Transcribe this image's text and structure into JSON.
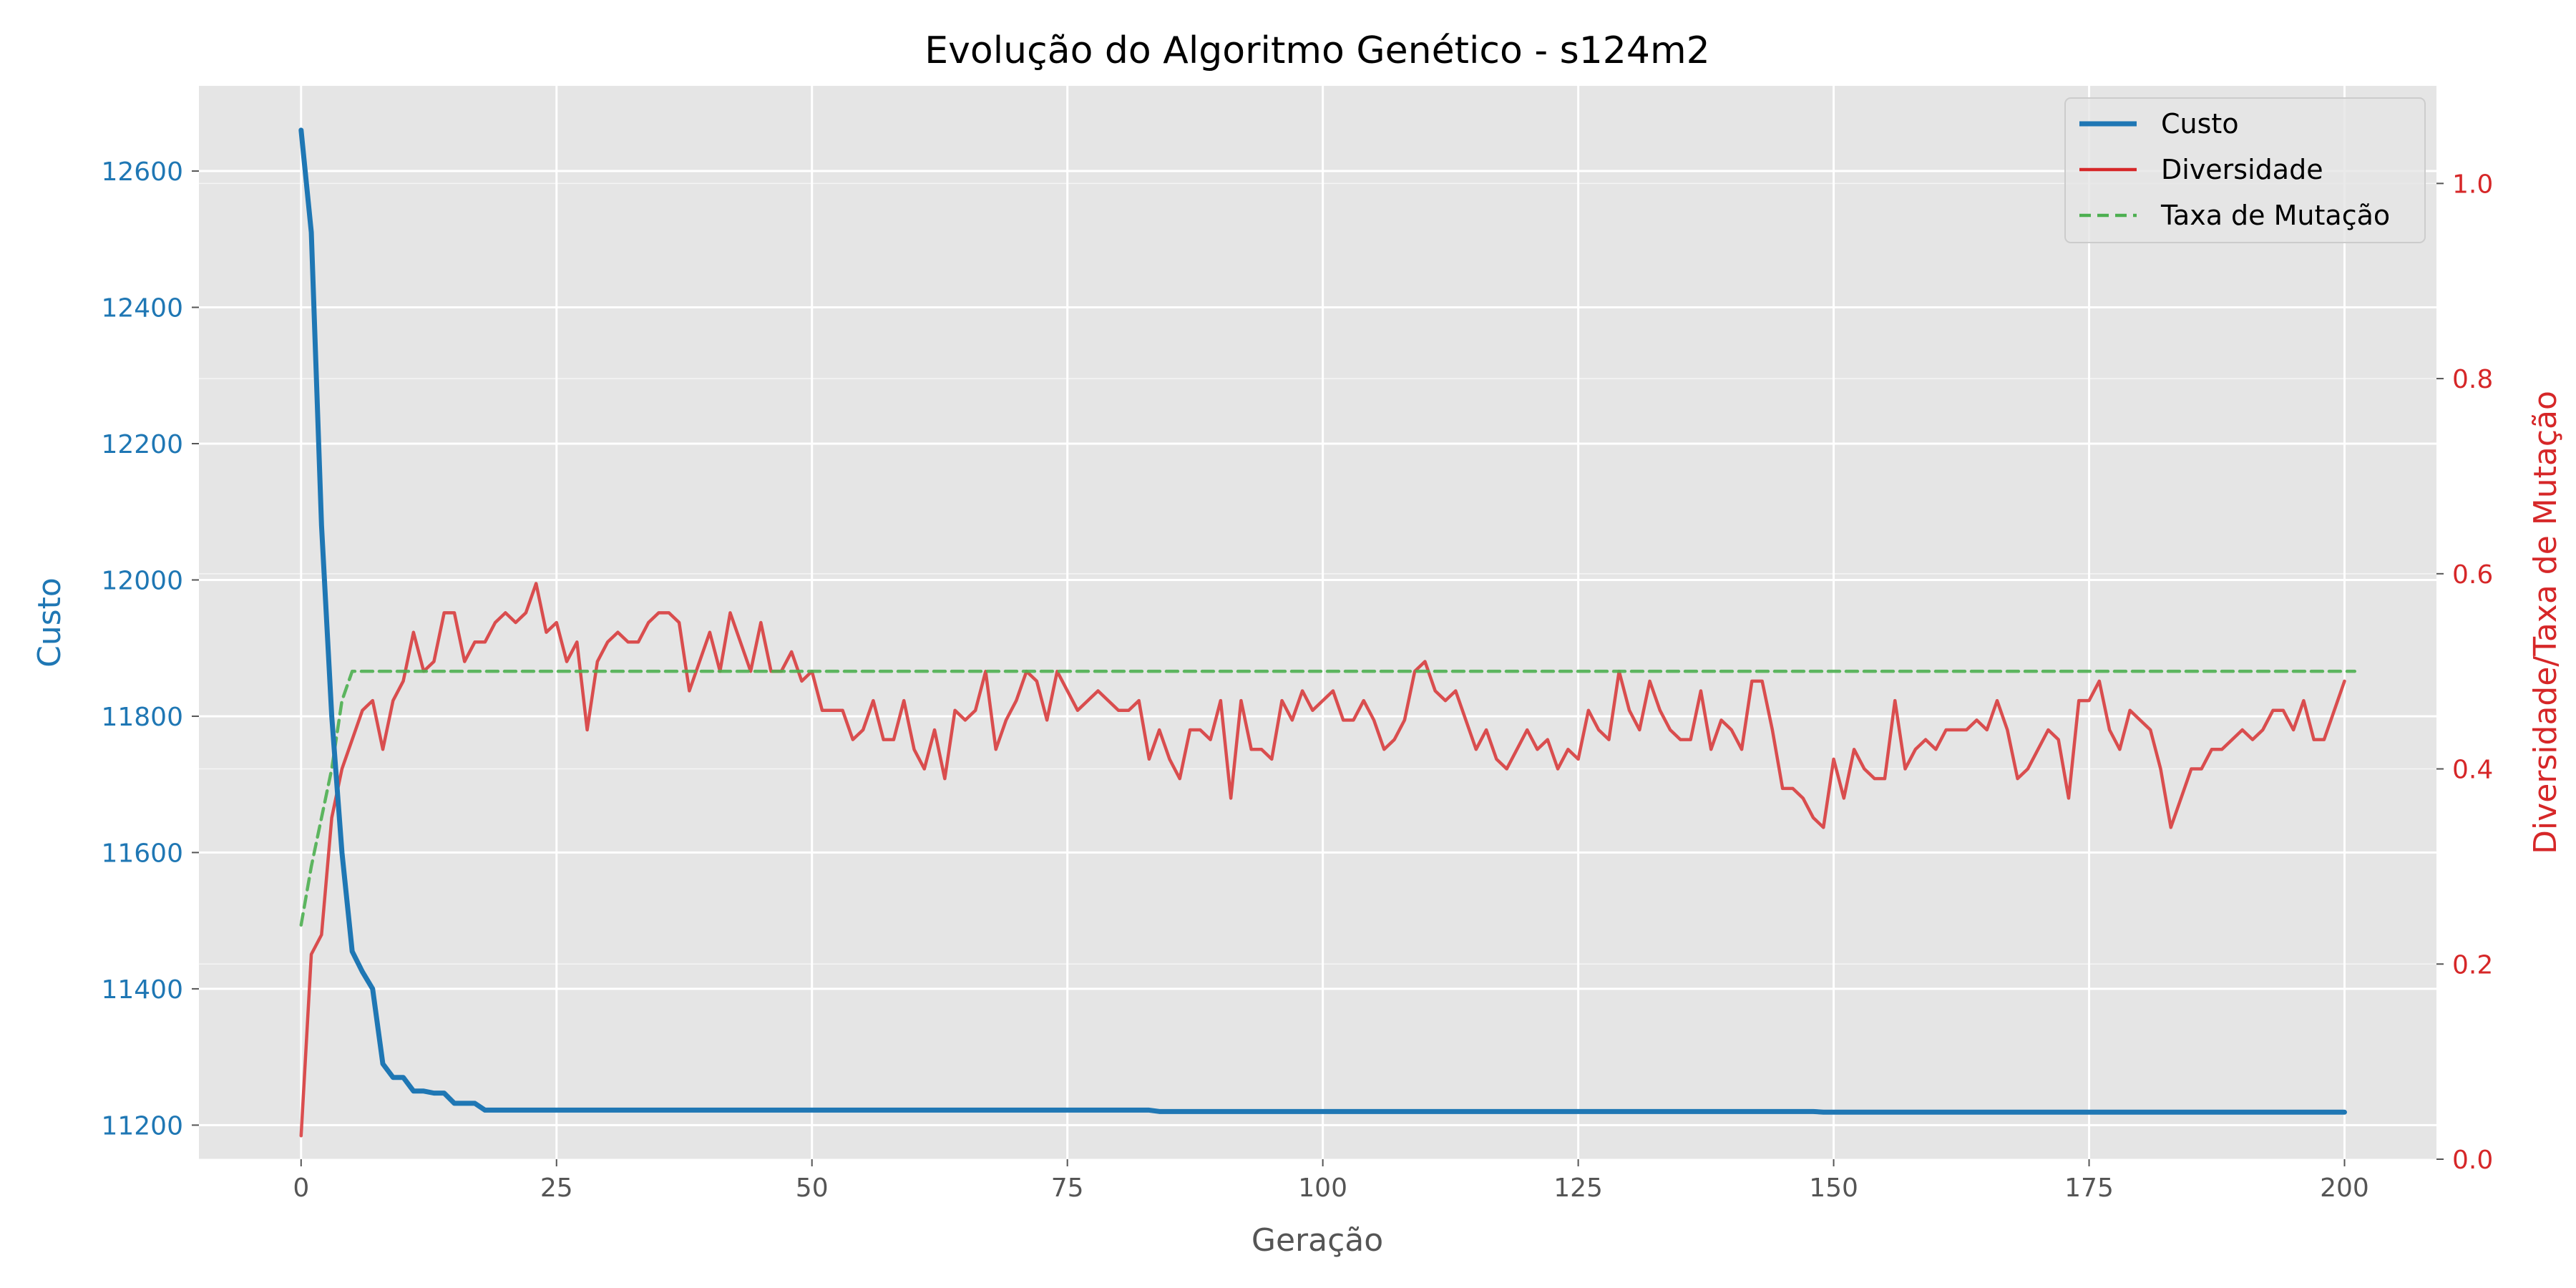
{
  "chart_data": {
    "type": "line",
    "title": "Evolução do Algoritmo Genético - s124m2",
    "xlabel": "Geração",
    "ylabel": "Custo",
    "ylabel_right": "Diversidade/Taxa de Mutação",
    "xlim": [
      -10,
      209
    ],
    "ylim": [
      11150,
      12725
    ],
    "ylim_right": [
      0,
      1.1
    ],
    "x_ticks": [
      "0",
      "25",
      "50",
      "75",
      "100",
      "125",
      "150",
      "175",
      "200"
    ],
    "y_ticks": [
      "11200",
      "11400",
      "11600",
      "11800",
      "12000",
      "12200",
      "12400",
      "12600"
    ],
    "y_ticks_right": [
      "0.0",
      "0.2",
      "0.4",
      "0.6",
      "0.8",
      "1.0"
    ],
    "grid": true,
    "legend_position": "top-right",
    "colors": {
      "custo": "#1f77b4",
      "diversidade": "#d62728",
      "taxa": "#4caf50",
      "background": "#e5e5e5",
      "grid": "#ffffff",
      "left_axis_text": "#1f77b4",
      "right_axis_text": "#d62728"
    },
    "series": [
      {
        "name": "Custo",
        "axis": "left",
        "style": "solid",
        "x_start": 0,
        "values": [
          12660,
          12510,
          12080,
          11800,
          11600,
          11455,
          11425,
          11400,
          11290,
          11270,
          11270,
          11250,
          11250,
          11247,
          11247,
          11232,
          11232,
          11232,
          11222,
          11222,
          11222,
          11222,
          11222,
          11222,
          11222,
          11222,
          11222,
          11222,
          11222,
          11222,
          11222,
          11222,
          11222,
          11222,
          11222,
          11222,
          11222,
          11222,
          11222,
          11222,
          11222,
          11222,
          11222,
          11222,
          11222,
          11222,
          11222,
          11222,
          11222,
          11222,
          11222,
          11222,
          11222,
          11222,
          11222,
          11222,
          11222,
          11222,
          11222,
          11222,
          11222,
          11222,
          11222,
          11222,
          11222,
          11222,
          11222,
          11222,
          11222,
          11222,
          11222,
          11222,
          11222,
          11222,
          11222,
          11222,
          11222,
          11222,
          11222,
          11222,
          11222,
          11222,
          11222,
          11222,
          11220,
          11220,
          11220,
          11220,
          11220,
          11220,
          11220,
          11220,
          11220,
          11220,
          11220,
          11220,
          11220,
          11220,
          11220,
          11220,
          11220,
          11220,
          11220,
          11220,
          11220,
          11220,
          11220,
          11220,
          11220,
          11220,
          11220,
          11220,
          11220,
          11220,
          11220,
          11220,
          11220,
          11220,
          11220,
          11220,
          11220,
          11220,
          11220,
          11220,
          11220,
          11220,
          11220,
          11220,
          11220,
          11220,
          11220,
          11220,
          11220,
          11220,
          11220,
          11220,
          11220,
          11220,
          11220,
          11220,
          11220,
          11220,
          11220,
          11220,
          11220,
          11220,
          11220,
          11220,
          11220,
          11219,
          11219,
          11219,
          11219,
          11219,
          11219,
          11219,
          11219,
          11219,
          11219,
          11219,
          11219,
          11219,
          11219,
          11219,
          11219,
          11219,
          11219,
          11219,
          11219,
          11219,
          11219,
          11219,
          11219,
          11219,
          11219,
          11219,
          11219,
          11219,
          11219,
          11219,
          11219,
          11219,
          11219,
          11219,
          11219,
          11219,
          11219,
          11219,
          11219,
          11219,
          11219,
          11219,
          11219,
          11219,
          11219,
          11219,
          11219,
          11219,
          11219,
          11219,
          11219
        ]
      },
      {
        "name": "Diversidade",
        "axis": "right",
        "style": "solid",
        "x_start": 0,
        "values": [
          0.024,
          0.21,
          0.23,
          0.35,
          0.4,
          0.43,
          0.46,
          0.47,
          0.42,
          0.47,
          0.49,
          0.54,
          0.5,
          0.51,
          0.56,
          0.56,
          0.51,
          0.53,
          0.53,
          0.55,
          0.56,
          0.55,
          0.56,
          0.59,
          0.54,
          0.55,
          0.51,
          0.53,
          0.44,
          0.51,
          0.53,
          0.54,
          0.53,
          0.53,
          0.55,
          0.56,
          0.56,
          0.55,
          0.48,
          0.51,
          0.54,
          0.5,
          0.56,
          0.53,
          0.5,
          0.55,
          0.5,
          0.5,
          0.52,
          0.49,
          0.5,
          0.46,
          0.46,
          0.46,
          0.43,
          0.44,
          0.47,
          0.43,
          0.43,
          0.47,
          0.42,
          0.4,
          0.44,
          0.39,
          0.46,
          0.45,
          0.46,
          0.5,
          0.42,
          0.45,
          0.47,
          0.5,
          0.49,
          0.45,
          0.5,
          0.48,
          0.46,
          0.47,
          0.48,
          0.47,
          0.46,
          0.46,
          0.47,
          0.41,
          0.44,
          0.41,
          0.39,
          0.44,
          0.44,
          0.43,
          0.47,
          0.37,
          0.47,
          0.42,
          0.42,
          0.41,
          0.47,
          0.45,
          0.48,
          0.46,
          0.47,
          0.48,
          0.45,
          0.45,
          0.47,
          0.45,
          0.42,
          0.43,
          0.45,
          0.5,
          0.51,
          0.48,
          0.47,
          0.48,
          0.45,
          0.42,
          0.44,
          0.41,
          0.4,
          0.42,
          0.44,
          0.42,
          0.43,
          0.4,
          0.42,
          0.41,
          0.46,
          0.44,
          0.43,
          0.5,
          0.46,
          0.44,
          0.49,
          0.46,
          0.44,
          0.43,
          0.43,
          0.48,
          0.42,
          0.45,
          0.44,
          0.42,
          0.49,
          0.49,
          0.44,
          0.38,
          0.38,
          0.37,
          0.35,
          0.34,
          0.41,
          0.37,
          0.42,
          0.4,
          0.39,
          0.39,
          0.47,
          0.4,
          0.42,
          0.43,
          0.42,
          0.44,
          0.44,
          0.44,
          0.45,
          0.44,
          0.47,
          0.44,
          0.39,
          0.4,
          0.42,
          0.44,
          0.43,
          0.37,
          0.47,
          0.47,
          0.49,
          0.44,
          0.42,
          0.46,
          0.45,
          0.44,
          0.4,
          0.34,
          0.37,
          0.4,
          0.4,
          0.42,
          0.42,
          0.43,
          0.44,
          0.43,
          0.44,
          0.46,
          0.46,
          0.44,
          0.47,
          0.43,
          0.43,
          0.46,
          0.49
        ]
      },
      {
        "name": "Taxa de Mutação",
        "axis": "right",
        "style": "dashed",
        "x_start": 0,
        "values": [
          0.24,
          0.3,
          0.35,
          0.4,
          0.47,
          0.5,
          0.5,
          0.5,
          0.5,
          0.5,
          0.5,
          0.5,
          0.5,
          0.5,
          0.5,
          0.5,
          0.5,
          0.5,
          0.5,
          0.5,
          0.5,
          0.5,
          0.5,
          0.5,
          0.5,
          0.5,
          0.5,
          0.5,
          0.5,
          0.5,
          0.5,
          0.5,
          0.5,
          0.5,
          0.5,
          0.5,
          0.5,
          0.5,
          0.5,
          0.5,
          0.5,
          0.5,
          0.5,
          0.5,
          0.5,
          0.5,
          0.5,
          0.5,
          0.5,
          0.5,
          0.5,
          0.5,
          0.5,
          0.5,
          0.5,
          0.5,
          0.5,
          0.5,
          0.5,
          0.5,
          0.5,
          0.5,
          0.5,
          0.5,
          0.5,
          0.5,
          0.5,
          0.5,
          0.5,
          0.5,
          0.5,
          0.5,
          0.5,
          0.5,
          0.5,
          0.5,
          0.5,
          0.5,
          0.5,
          0.5,
          0.5,
          0.5,
          0.5,
          0.5,
          0.5,
          0.5,
          0.5,
          0.5,
          0.5,
          0.5,
          0.5,
          0.5,
          0.5,
          0.5,
          0.5,
          0.5,
          0.5,
          0.5,
          0.5,
          0.5,
          0.5,
          0.5,
          0.5,
          0.5,
          0.5,
          0.5,
          0.5,
          0.5,
          0.5,
          0.5,
          0.5,
          0.5,
          0.5,
          0.5,
          0.5,
          0.5,
          0.5,
          0.5,
          0.5,
          0.5,
          0.5,
          0.5,
          0.5,
          0.5,
          0.5,
          0.5,
          0.5,
          0.5,
          0.5,
          0.5,
          0.5,
          0.5,
          0.5,
          0.5,
          0.5,
          0.5,
          0.5,
          0.5,
          0.5,
          0.5,
          0.5,
          0.5,
          0.5,
          0.5,
          0.5,
          0.5,
          0.5,
          0.5,
          0.5,
          0.5,
          0.5,
          0.5,
          0.5,
          0.5,
          0.5,
          0.5,
          0.5,
          0.5,
          0.5,
          0.5,
          0.5,
          0.5,
          0.5,
          0.5,
          0.5,
          0.5,
          0.5,
          0.5,
          0.5,
          0.5,
          0.5,
          0.5,
          0.5,
          0.5,
          0.5,
          0.5,
          0.5,
          0.5,
          0.5,
          0.5,
          0.5,
          0.5,
          0.5,
          0.5,
          0.5,
          0.5,
          0.5,
          0.5,
          0.5,
          0.5,
          0.5,
          0.5,
          0.5,
          0.5,
          0.5,
          0.5,
          0.5,
          0.5,
          0.5,
          0.5,
          0.5,
          0.5
        ]
      }
    ]
  }
}
